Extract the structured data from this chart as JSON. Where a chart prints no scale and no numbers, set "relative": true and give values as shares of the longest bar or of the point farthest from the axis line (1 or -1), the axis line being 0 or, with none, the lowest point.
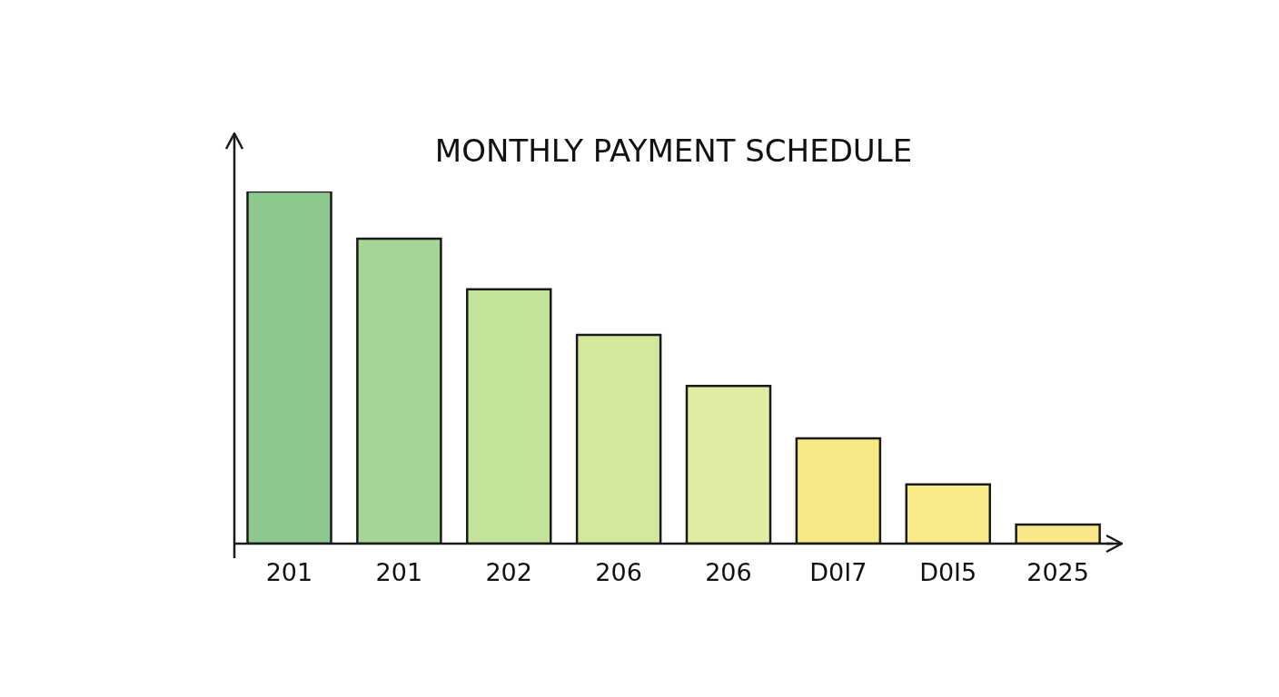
{
  "chart_data": {
    "type": "bar",
    "title": "MONTHLY PAYMENT SCHEDULE",
    "relative": true,
    "categories": [
      "201",
      "201",
      "202",
      "206",
      "206",
      "D0I7",
      "D0I5",
      "2025"
    ],
    "values": [
      1,
      0.866,
      0.722,
      0.593,
      0.448,
      0.299,
      0.168,
      0.054
    ],
    "colors": [
      "#8dc98f",
      "#a6d696",
      "#c3e29a",
      "#d3e89c",
      "#e0eca2",
      "#f7e985",
      "#f8ea88",
      "#f8e88a"
    ],
    "grid": false,
    "legend": false
  }
}
